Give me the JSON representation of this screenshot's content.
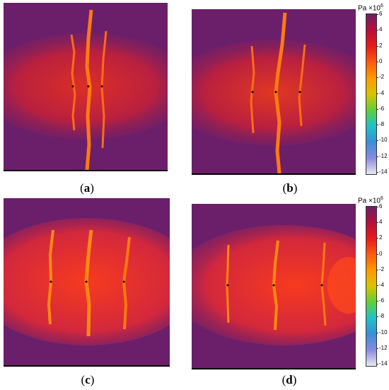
{
  "panels": [
    {
      "id": "a",
      "caption_letter": "a"
    },
    {
      "id": "b",
      "caption_letter": "b"
    },
    {
      "id": "c",
      "caption_letter": "c"
    },
    {
      "id": "d",
      "caption_letter": "d"
    }
  ],
  "colorbar": {
    "unit": "Pa",
    "exponent_base": "×10",
    "exponent": "6",
    "ticks": [
      "6",
      "4",
      "2",
      "0",
      "-2",
      "-4",
      "-6",
      "-8",
      "-10",
      "-12",
      "-14"
    ],
    "colors": [
      "#6b1f6a",
      "#b5103a",
      "#e81a1a",
      "#ff5a10",
      "#ff9a00",
      "#d9c400",
      "#5fcf3a",
      "#1fc1c8",
      "#3a8ed8",
      "#8a8ae0",
      "#e8e8f2"
    ]
  }
}
